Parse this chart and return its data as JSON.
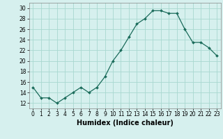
{
  "x": [
    0,
    1,
    2,
    3,
    4,
    5,
    6,
    7,
    8,
    9,
    10,
    11,
    12,
    13,
    14,
    15,
    16,
    17,
    18,
    19,
    20,
    21,
    22,
    23
  ],
  "y": [
    15,
    13,
    13,
    12,
    13,
    14,
    15,
    14,
    15,
    17,
    20,
    22,
    24.5,
    27,
    28,
    29.5,
    29.5,
    29,
    29,
    26,
    23.5,
    23.5,
    22.5,
    21
  ],
  "line_color": "#1a6b5a",
  "marker_color": "#1a6b5a",
  "bg_color": "#d6f0ee",
  "grid_color": "#a8d8d0",
  "xlabel": "Humidex (Indice chaleur)",
  "xlabel_fontsize": 7,
  "ylim": [
    11,
    31
  ],
  "xlim": [
    -0.5,
    23.5
  ],
  "yticks": [
    12,
    14,
    16,
    18,
    20,
    22,
    24,
    26,
    28,
    30
  ],
  "xtick_labels": [
    "0",
    "1",
    "2",
    "3",
    "4",
    "5",
    "6",
    "7",
    "8",
    "9",
    "10",
    "11",
    "12",
    "13",
    "14",
    "15",
    "16",
    "17",
    "18",
    "19",
    "20",
    "21",
    "22",
    "23"
  ],
  "tick_fontsize": 5.5,
  "spine_color": "#888888"
}
